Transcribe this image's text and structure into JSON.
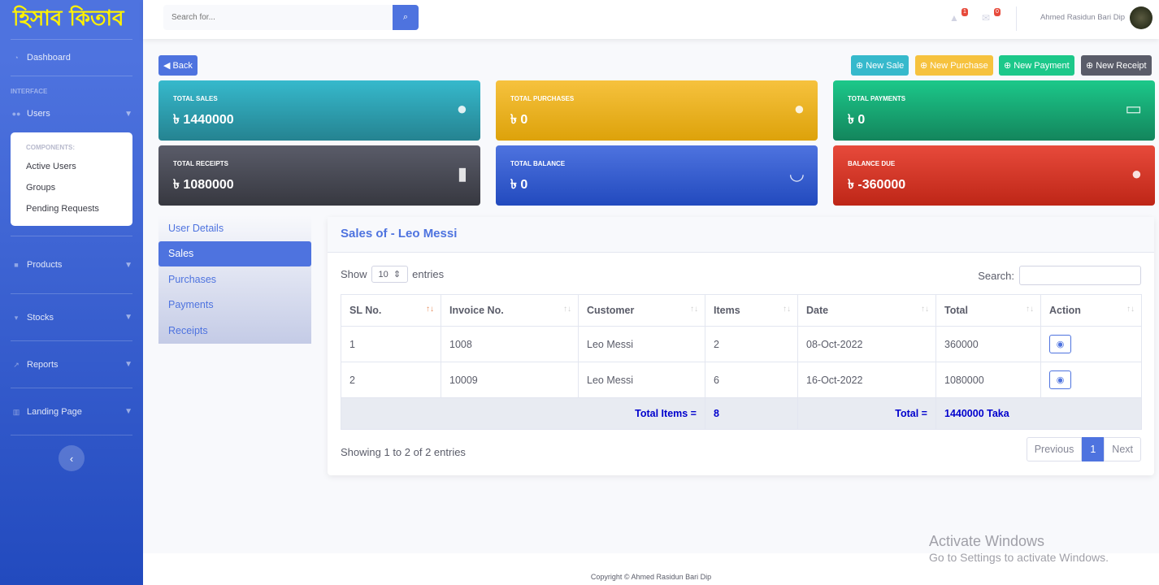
{
  "sidebar": {
    "logo": "হিসাব কিতাব",
    "dashboard": "Dashboard",
    "interface": "INTERFACE",
    "users": "Users",
    "components": "COMPONENTS:",
    "sub_items": [
      "Active Users",
      "Groups",
      "Pending Requests"
    ],
    "products": "Products",
    "stocks": "Stocks",
    "reports": "Reports",
    "landing": "Landing Page"
  },
  "topbar": {
    "search_placeholder": "Search for...",
    "alerts": "1",
    "messages": "0",
    "user": "Ahmed Rasidun Bari Dip"
  },
  "actions": {
    "back": "Back",
    "new_sale": "New Sale",
    "new_purchase": "New Purchase",
    "new_payment": "New Payment",
    "new_receipt": "New Receipt"
  },
  "cards": [
    {
      "label": "TOTAL SALES",
      "value": "৳ 1440000",
      "color": "#36b9cc"
    },
    {
      "label": "TOTAL PURCHASES",
      "value": "৳ 0",
      "color": "#f6c23e"
    },
    {
      "label": "TOTAL PAYMENTS",
      "value": "৳ 0",
      "color": "#1cc88a"
    },
    {
      "label": "TOTAL RECEIPTS",
      "value": "৳ 1080000",
      "color": "#5a5c69"
    },
    {
      "label": "TOTAL BALANCE",
      "value": "৳ 0",
      "color": "#4e73df"
    },
    {
      "label": "BALANCE DUE",
      "value": "৳ -360000",
      "color": "#e74a3b"
    }
  ],
  "tabs": [
    "User Details",
    "Sales",
    "Purchases",
    "Payments",
    "Receipts"
  ],
  "panel": {
    "title": "Sales of - Leo Messi",
    "show": "Show",
    "entries_value": "10",
    "entries": "entries",
    "search": "Search:",
    "headers": [
      "SL No.",
      "Invoice No.",
      "Customer",
      "Items",
      "Date",
      "Total",
      "Action"
    ],
    "rows": [
      [
        "1",
        "1008",
        "Leo Messi",
        "2",
        "08-Oct-2022",
        "360000"
      ],
      [
        "2",
        "10009",
        "Leo Messi",
        "6",
        "16-Oct-2022",
        "1080000"
      ]
    ],
    "total_items_label": "Total Items =",
    "total_items": "8",
    "total_label": "Total =",
    "total": "1440000 Taka",
    "info": "Showing 1 to 2 of 2 entries",
    "prev": "Previous",
    "page": "1",
    "next": "Next"
  },
  "footer": "Copyright © Ahmed Rasidun Bari Dip",
  "watermark": {
    "title": "Activate Windows",
    "sub": "Go to Settings to activate Windows."
  }
}
